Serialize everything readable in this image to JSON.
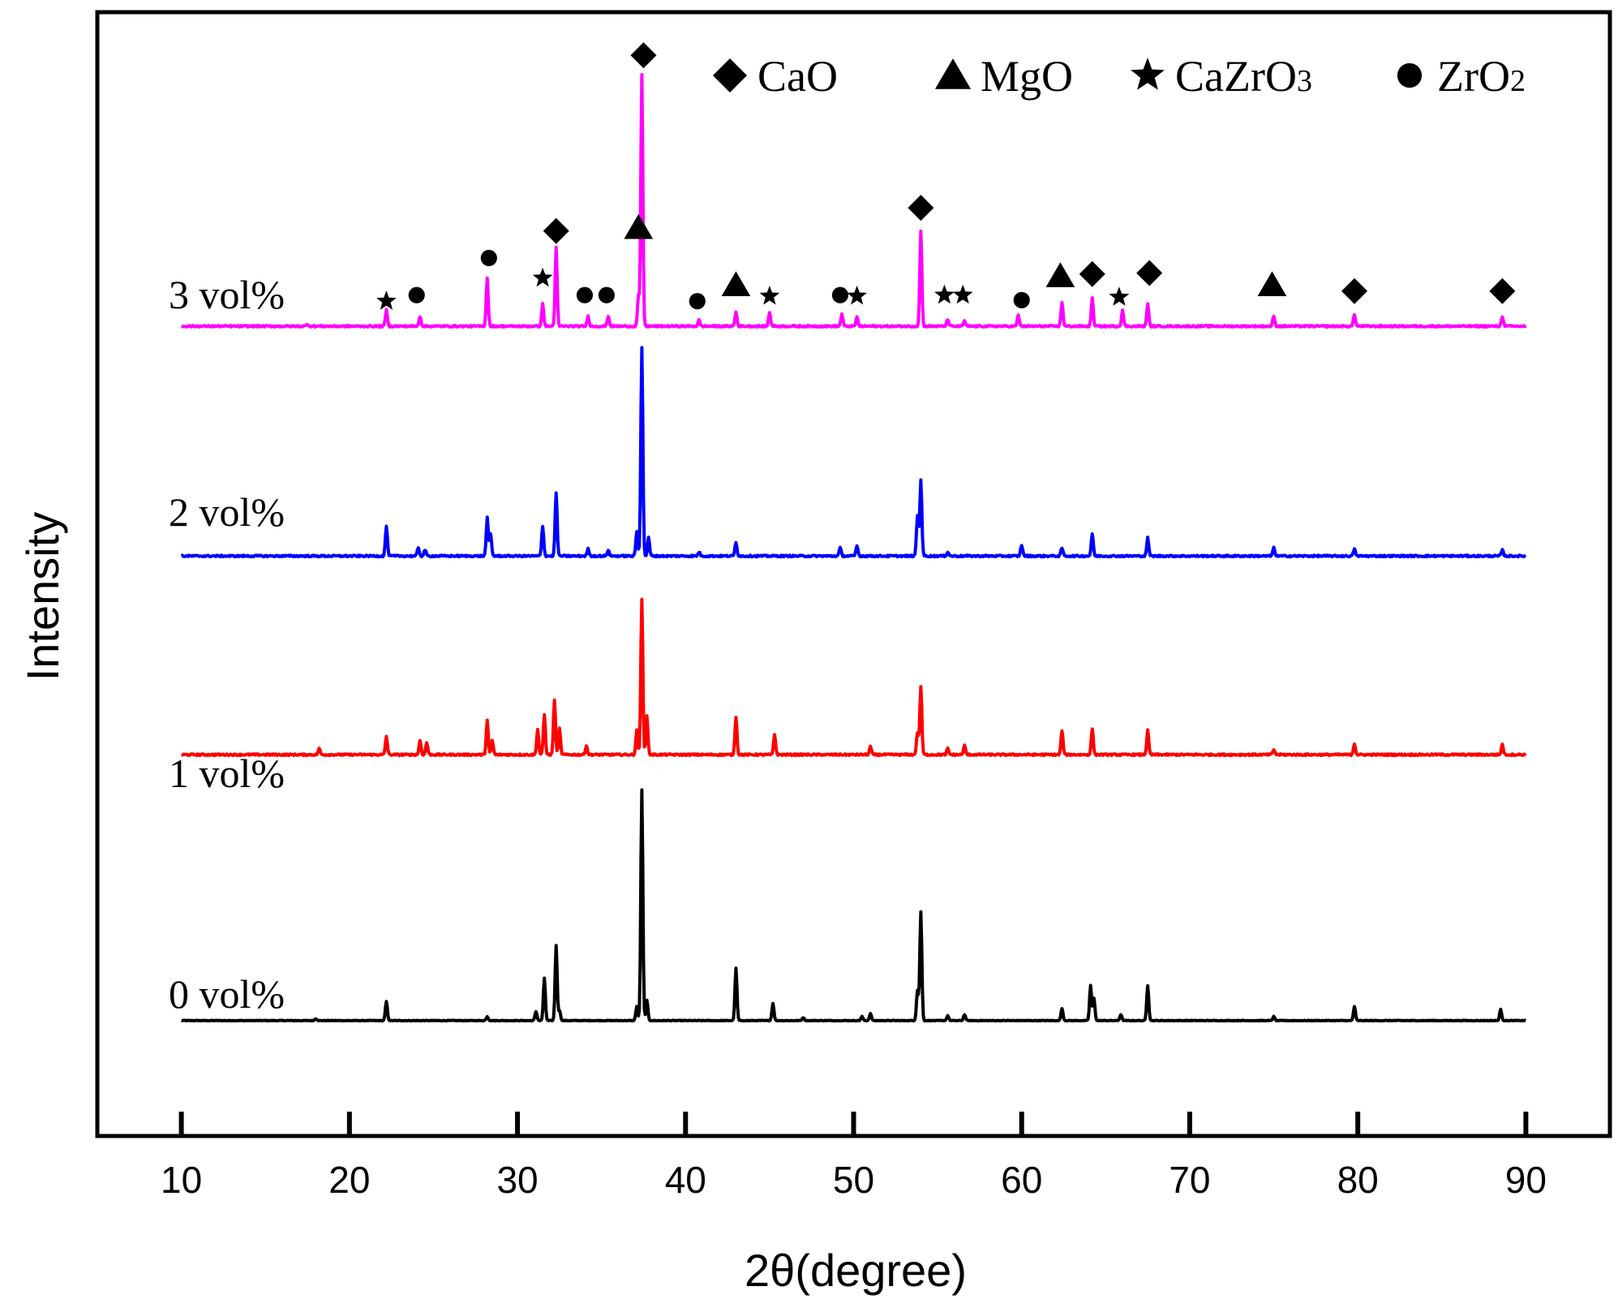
{
  "chart_data": {
    "type": "line",
    "title": "",
    "xlabel": "2θ(degree)",
    "ylabel": "Intensity",
    "xlim": [
      5,
      95
    ],
    "xticks": [
      10,
      20,
      30,
      40,
      50,
      60,
      70,
      80,
      90
    ],
    "xtick_labels": [
      "10",
      "20",
      "30",
      "40",
      "50",
      "60",
      "70",
      "80",
      "90"
    ],
    "yticks_shown": false,
    "grid": false,
    "legend_position": "top-right",
    "legend": [
      {
        "symbol": "diamond",
        "label": "CaO"
      },
      {
        "symbol": "triangle",
        "label": "MgO"
      },
      {
        "symbol": "star",
        "label_main": "CaZrO",
        "label_sub": "3"
      },
      {
        "symbol": "circle",
        "label_main": "ZrO",
        "label_sub": "2"
      }
    ],
    "series": [
      {
        "name": "0 vol%",
        "label": "0 vol%",
        "color": "#000000",
        "baseline": 0,
        "peaks": [
          [
            18.0,
            2
          ],
          [
            22.2,
            19
          ],
          [
            28.2,
            4
          ],
          [
            31.1,
            9
          ],
          [
            31.6,
            42
          ],
          [
            32.3,
            75
          ],
          [
            32.5,
            10
          ],
          [
            37.1,
            14
          ],
          [
            37.4,
            230
          ],
          [
            37.7,
            20
          ],
          [
            43.0,
            52
          ],
          [
            45.2,
            17
          ],
          [
            47.0,
            3
          ],
          [
            50.5,
            4
          ],
          [
            51.0,
            7
          ],
          [
            53.8,
            30
          ],
          [
            54.0,
            108
          ],
          [
            55.6,
            5
          ],
          [
            56.6,
            6
          ],
          [
            62.4,
            12
          ],
          [
            64.1,
            35
          ],
          [
            64.3,
            22
          ],
          [
            65.9,
            6
          ],
          [
            67.5,
            35
          ],
          [
            75.0,
            4
          ],
          [
            79.8,
            14
          ],
          [
            88.5,
            11
          ]
        ]
      },
      {
        "name": "1 vol%",
        "label": "1 vol%",
        "color": "#ff0000",
        "baseline": 265,
        "peaks": [
          [
            18.2,
            6
          ],
          [
            22.2,
            18
          ],
          [
            24.2,
            14
          ],
          [
            24.6,
            12
          ],
          [
            28.2,
            34
          ],
          [
            28.5,
            14
          ],
          [
            31.2,
            25
          ],
          [
            31.6,
            40
          ],
          [
            32.2,
            55
          ],
          [
            32.5,
            26
          ],
          [
            34.1,
            9
          ],
          [
            37.1,
            24
          ],
          [
            37.4,
            155
          ],
          [
            37.7,
            38
          ],
          [
            43.0,
            38
          ],
          [
            45.3,
            20
          ],
          [
            51.0,
            8
          ],
          [
            53.8,
            22
          ],
          [
            54.0,
            68
          ],
          [
            55.6,
            6
          ],
          [
            56.6,
            9
          ],
          [
            62.4,
            24
          ],
          [
            64.2,
            26
          ],
          [
            67.5,
            24
          ],
          [
            75.0,
            5
          ],
          [
            79.8,
            11
          ],
          [
            88.6,
            10
          ]
        ]
      },
      {
        "name": "2 vol%",
        "label": "2 vol%",
        "color": "#0000ff",
        "baseline": 463,
        "peaks": [
          [
            22.2,
            30
          ],
          [
            24.1,
            8
          ],
          [
            24.5,
            6
          ],
          [
            28.2,
            38
          ],
          [
            28.4,
            22
          ],
          [
            31.5,
            30
          ],
          [
            32.3,
            63
          ],
          [
            34.2,
            7
          ],
          [
            35.4,
            6
          ],
          [
            37.1,
            24
          ],
          [
            37.4,
            208
          ],
          [
            37.8,
            18
          ],
          [
            40.8,
            4
          ],
          [
            43.0,
            14
          ],
          [
            49.2,
            8
          ],
          [
            50.2,
            10
          ],
          [
            53.8,
            40
          ],
          [
            54.0,
            76
          ],
          [
            55.6,
            4
          ],
          [
            60.0,
            11
          ],
          [
            62.4,
            8
          ],
          [
            64.2,
            22
          ],
          [
            67.5,
            18
          ],
          [
            75.0,
            8
          ],
          [
            79.8,
            7
          ],
          [
            88.6,
            6
          ]
        ]
      },
      {
        "name": "3 vol%",
        "label": "3 vol%",
        "color": "#ff00ff",
        "baseline": 692,
        "peaks": [
          [
            17.5,
            2
          ],
          [
            22.2,
            16
          ],
          [
            24.2,
            10
          ],
          [
            28.2,
            48
          ],
          [
            31.5,
            22
          ],
          [
            32.3,
            78
          ],
          [
            34.2,
            10
          ],
          [
            35.4,
            10
          ],
          [
            37.2,
            30
          ],
          [
            37.4,
            250
          ],
          [
            40.8,
            6
          ],
          [
            43.0,
            14
          ],
          [
            45.0,
            14
          ],
          [
            49.3,
            12
          ],
          [
            50.2,
            9
          ],
          [
            54.0,
            95
          ],
          [
            55.6,
            7
          ],
          [
            56.6,
            5
          ],
          [
            59.8,
            11
          ],
          [
            62.4,
            24
          ],
          [
            64.2,
            28
          ],
          [
            66.0,
            16
          ],
          [
            67.5,
            22
          ],
          [
            75.0,
            10
          ],
          [
            79.8,
            12
          ],
          [
            88.6,
            10
          ]
        ]
      }
    ],
    "phase_markers": [
      {
        "symbol": "diamond",
        "x": 37.5,
        "y": 962
      },
      {
        "symbol": "diamond",
        "x": 32.3,
        "y": 787
      },
      {
        "symbol": "diamond",
        "x": 54.0,
        "y": 810
      },
      {
        "symbol": "diamond",
        "x": 64.2,
        "y": 744
      },
      {
        "symbol": "diamond",
        "x": 67.6,
        "y": 745
      },
      {
        "symbol": "diamond",
        "x": 79.8,
        "y": 727
      },
      {
        "symbol": "diamond",
        "x": 88.6,
        "y": 727
      },
      {
        "symbol": "triangle",
        "x": 37.2,
        "y": 790
      },
      {
        "symbol": "triangle",
        "x": 43.0,
        "y": 733
      },
      {
        "symbol": "triangle",
        "x": 62.3,
        "y": 742
      },
      {
        "symbol": "triangle",
        "x": 74.9,
        "y": 733
      },
      {
        "symbol": "star",
        "x": 22.2,
        "y": 717
      },
      {
        "symbol": "star",
        "x": 31.5,
        "y": 740
      },
      {
        "symbol": "star",
        "x": 45.0,
        "y": 722
      },
      {
        "symbol": "star",
        "x": 50.2,
        "y": 722
      },
      {
        "symbol": "star",
        "x": 55.4,
        "y": 723
      },
      {
        "symbol": "star",
        "x": 56.5,
        "y": 723
      },
      {
        "symbol": "star",
        "x": 65.8,
        "y": 721
      },
      {
        "symbol": "circle",
        "x": 24.0,
        "y": 723
      },
      {
        "symbol": "circle",
        "x": 28.3,
        "y": 760
      },
      {
        "symbol": "circle",
        "x": 34.0,
        "y": 723
      },
      {
        "symbol": "circle",
        "x": 35.3,
        "y": 723
      },
      {
        "symbol": "circle",
        "x": 40.7,
        "y": 717
      },
      {
        "symbol": "circle",
        "x": 49.2,
        "y": 723
      },
      {
        "symbol": "circle",
        "x": 60.0,
        "y": 718
      }
    ],
    "ylim": [
      -115,
      1005
    ]
  }
}
